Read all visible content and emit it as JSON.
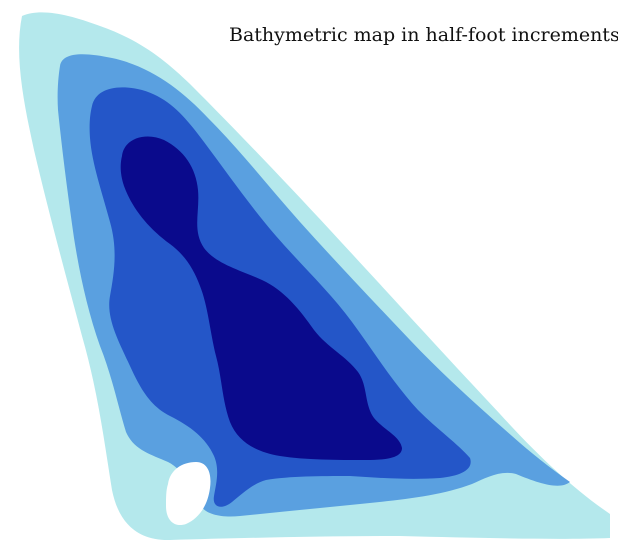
{
  "map": {
    "title": "Bathymetric map in half-foot increments",
    "colors": {
      "background": "#ffffff",
      "depth_band_1": "#b4e8ec",
      "depth_band_2": "#5aa0e0",
      "depth_band_3": "#2456c8",
      "depth_band_4": "#0a0a8c",
      "island": "#ffffff"
    },
    "depth_band_count": 4,
    "features": [
      "island"
    ]
  }
}
